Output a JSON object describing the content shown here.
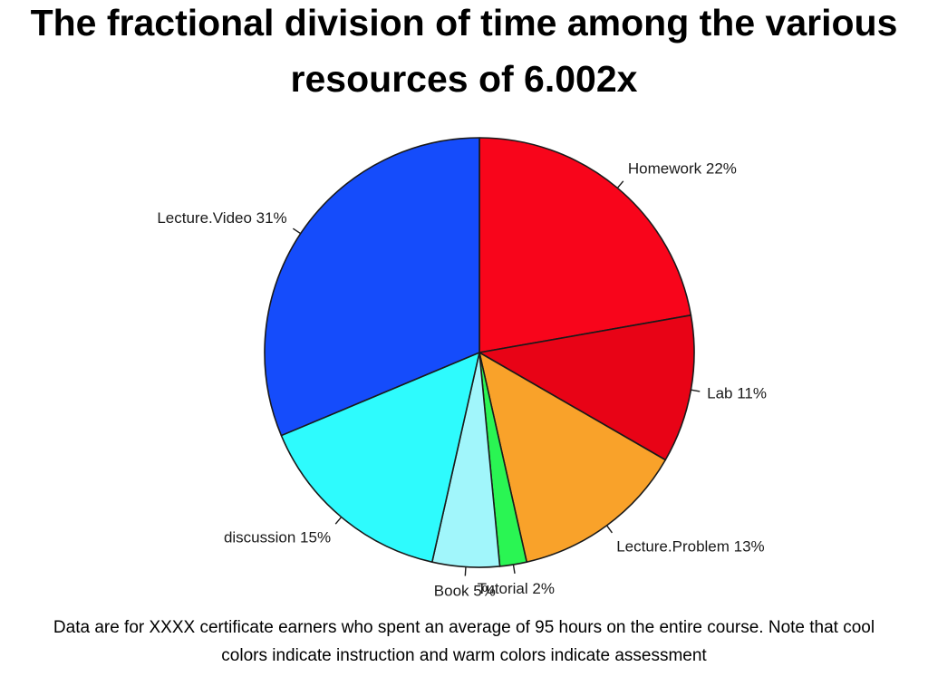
{
  "slide": {
    "title": "The fractional division of time among the various resources of 6.002x",
    "caption": "Data are for XXXX certificate earners who spent an average of 95 hours on the entire course.  Note that cool colors indicate instruction and warm colors indicate assessment"
  },
  "chart_data": {
    "type": "pie",
    "start": "12 o'clock",
    "direction": "clockwise",
    "slices": [
      {
        "name": "Homework",
        "label": "Homework 22%",
        "value": 22,
        "color": "#f8051b"
      },
      {
        "name": "Lab",
        "label": "Lab 11%",
        "value": 11,
        "color": "#e80316"
      },
      {
        "name": "Lecture.Problem",
        "label": "Lecture.Problem 13%",
        "value": 13,
        "color": "#f9a22a"
      },
      {
        "name": "Tutorial",
        "label": "Tutorial 2%",
        "value": 2,
        "color": "#2af553"
      },
      {
        "name": "Book",
        "label": "Book 5%",
        "value": 5,
        "color": "#a1f6fb"
      },
      {
        "name": "discussion",
        "label": "discussion 15%",
        "value": 15,
        "color": "#2efbfd"
      },
      {
        "name": "Lecture.Video",
        "label": "Lecture.Video 31%",
        "value": 31,
        "color": "#154cfb"
      }
    ]
  }
}
